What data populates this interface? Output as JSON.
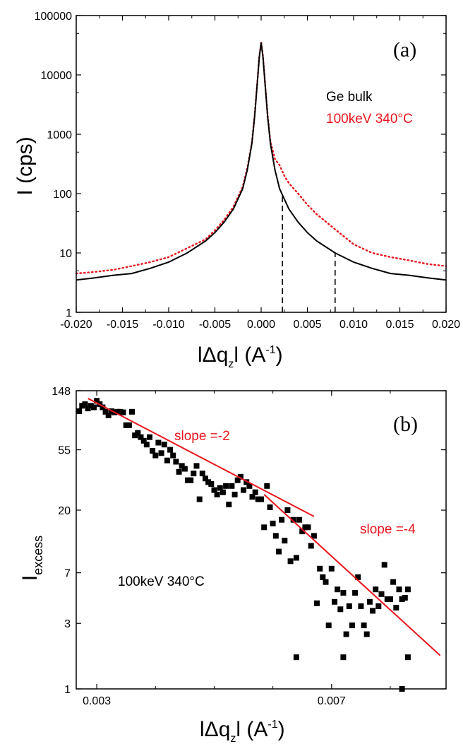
{
  "chart_data": [
    {
      "panel_label": "(a)",
      "type": "line",
      "xlabel": "lΔq_zl (A^-1)",
      "xlabel_main": "lΔq",
      "xlabel_sub": "z",
      "xlabel_tail": "l (A",
      "xlabel_sup": "-1",
      "xlabel_close": ")",
      "ylabel": "I (cps)",
      "yscale": "log",
      "xlim": [
        -0.02,
        0.02
      ],
      "ylim": [
        1,
        100000
      ],
      "x_ticks": [
        -0.02,
        -0.015,
        -0.01,
        -0.005,
        0.0,
        0.005,
        0.01,
        0.015,
        0.02
      ],
      "x_tick_labels": [
        "-0.020",
        "-0.015",
        "-0.010",
        "-0.005",
        "0.000",
        "0.005",
        "0.010",
        "0.015",
        "0.020"
      ],
      "y_ticks": [
        1,
        10,
        100,
        1000,
        10000,
        100000
      ],
      "y_tick_labels": [
        "1",
        "10",
        "100",
        "1000",
        "10000",
        "100000"
      ],
      "series": [
        {
          "name": "Ge bulk",
          "color": "#000000",
          "style": "solid",
          "x": [
            -0.02,
            -0.018,
            -0.016,
            -0.014,
            -0.012,
            -0.01,
            -0.008,
            -0.006,
            -0.005,
            -0.004,
            -0.003,
            -0.002,
            -0.0015,
            -0.001,
            -0.0007,
            -0.0004,
            -0.0002,
            0.0,
            0.0002,
            0.0004,
            0.0007,
            0.001,
            0.0015,
            0.002,
            0.003,
            0.004,
            0.005,
            0.006,
            0.008,
            0.01,
            0.012,
            0.014,
            0.016,
            0.018,
            0.02
          ],
          "y": [
            3.5,
            3.8,
            4.2,
            4.5,
            5.5,
            7,
            10,
            16,
            22,
            33,
            55,
            120,
            250,
            700,
            2000,
            8000,
            20000,
            35000,
            20000,
            8000,
            2000,
            700,
            250,
            120,
            55,
            33,
            22,
            16,
            10,
            7,
            5.5,
            4.5,
            4.2,
            3.8,
            3.5
          ]
        },
        {
          "name": "100keV 340°C",
          "color": "#e8141c",
          "style": "dotted",
          "x": [
            -0.02,
            -0.018,
            -0.016,
            -0.014,
            -0.012,
            -0.01,
            -0.008,
            -0.006,
            -0.005,
            -0.004,
            -0.003,
            -0.002,
            -0.0015,
            -0.001,
            -0.0007,
            -0.0004,
            -0.0002,
            0.0,
            0.0002,
            0.0004,
            0.0007,
            0.001,
            0.0015,
            0.002,
            0.0025,
            0.003,
            0.004,
            0.005,
            0.006,
            0.008,
            0.01,
            0.012,
            0.014,
            0.016,
            0.018,
            0.02
          ],
          "y": [
            4.5,
            4.8,
            5.2,
            6,
            7,
            8.5,
            12,
            17,
            24,
            36,
            60,
            130,
            270,
            720,
            2100,
            8200,
            20500,
            35000,
            20500,
            8200,
            2100,
            760,
            380,
            300,
            200,
            150,
            100,
            65,
            45,
            25,
            14,
            10,
            8.5,
            7.5,
            6.5,
            6
          ]
        }
      ],
      "annotations": {
        "legend": [
          "Ge bulk",
          "100keV 340°C"
        ],
        "vertical_dashed_lines_x": [
          0.0023,
          0.008
        ]
      }
    },
    {
      "panel_label": "(b)",
      "type": "scatter",
      "xlabel": "lΔq_zl (A^-1)",
      "xlabel_main": "lΔq",
      "xlabel_sub": "z",
      "xlabel_tail": "l (A",
      "xlabel_sup": "-1",
      "xlabel_close": ")",
      "ylabel": "I_excess",
      "ylabel_main": "I",
      "ylabel_sub": "excess",
      "xscale": "linear",
      "yscale": "log",
      "xlim": [
        0.00265,
        0.00895
      ],
      "ylim": [
        1,
        148
      ],
      "x_ticks": [
        0.003,
        0.007
      ],
      "x_tick_labels": [
        "0.003",
        "0.007"
      ],
      "y_ticks": [
        1,
        3,
        7,
        20,
        55,
        148
      ],
      "y_tick_labels": [
        "1",
        "3",
        "7",
        "20",
        "55",
        "148"
      ],
      "series": [
        {
          "name": "100keV 340°C",
          "color": "#000000",
          "marker": "square",
          "points": [
            [
              0.0027,
              105
            ],
            [
              0.00275,
              115
            ],
            [
              0.0028,
              118
            ],
            [
              0.00285,
              110
            ],
            [
              0.0029,
              115
            ],
            [
              0.00295,
              112
            ],
            [
              0.003,
              125
            ],
            [
              0.00305,
              118
            ],
            [
              0.0031,
              112
            ],
            [
              0.00315,
              104
            ],
            [
              0.0032,
              98
            ],
            [
              0.00325,
              105
            ],
            [
              0.0033,
              103
            ],
            [
              0.00335,
              104
            ],
            [
              0.0034,
              104
            ],
            [
              0.00345,
              103
            ],
            [
              0.0035,
              83
            ],
            [
              0.00355,
              83
            ],
            [
              0.0036,
              104
            ],
            [
              0.00365,
              70
            ],
            [
              0.0037,
              73
            ],
            [
              0.00375,
              68
            ],
            [
              0.0038,
              64
            ],
            [
              0.00385,
              60
            ],
            [
              0.0039,
              68
            ],
            [
              0.00395,
              54
            ],
            [
              0.004,
              50
            ],
            [
              0.00405,
              62
            ],
            [
              0.0041,
              52
            ],
            [
              0.00415,
              60
            ],
            [
              0.0042,
              46
            ],
            [
              0.00425,
              55
            ],
            [
              0.0043,
              50
            ],
            [
              0.00435,
              45
            ],
            [
              0.0044,
              38
            ],
            [
              0.00445,
              42
            ],
            [
              0.0045,
              40
            ],
            [
              0.00455,
              33
            ],
            [
              0.0046,
              33
            ],
            [
              0.00465,
              37
            ],
            [
              0.0047,
              42
            ],
            [
              0.00475,
              24
            ],
            [
              0.0048,
              37
            ],
            [
              0.00485,
              34
            ],
            [
              0.0049,
              32
            ],
            [
              0.00495,
              31
            ],
            [
              0.005,
              28
            ],
            [
              0.00505,
              26
            ],
            [
              0.0051,
              29
            ],
            [
              0.00515,
              27
            ],
            [
              0.0052,
              30
            ],
            [
              0.00525,
              22
            ],
            [
              0.0053,
              30
            ],
            [
              0.00535,
              26
            ],
            [
              0.0054,
              33
            ],
            [
              0.00545,
              35
            ],
            [
              0.0055,
              28
            ],
            [
              0.00555,
              32
            ],
            [
              0.0056,
              30
            ],
            [
              0.00565,
              25
            ],
            [
              0.0057,
              27
            ],
            [
              0.00575,
              24
            ],
            [
              0.0058,
              24
            ],
            [
              0.00585,
              15
            ],
            [
              0.0059,
              30
            ],
            [
              0.00595,
              21
            ],
            [
              0.006,
              16
            ],
            [
              0.00605,
              13
            ],
            [
              0.0061,
              10
            ],
            [
              0.00615,
              17
            ],
            [
              0.0062,
              12
            ],
            [
              0.00625,
              20
            ],
            [
              0.0063,
              8.5
            ],
            [
              0.00635,
              17
            ],
            [
              0.0064,
              9
            ],
            [
              0.00645,
              17
            ],
            [
              0.0065,
              14
            ],
            [
              0.00655,
              15
            ],
            [
              0.0066,
              15
            ],
            [
              0.00665,
              11
            ],
            [
              0.0067,
              13
            ],
            [
              0.00675,
              4.2
            ],
            [
              0.0068,
              7.5
            ],
            [
              0.00685,
              6.5
            ],
            [
              0.0069,
              6.0
            ],
            [
              0.00695,
              2.9
            ],
            [
              0.007,
              7.5
            ],
            [
              0.00705,
              4.3
            ],
            [
              0.0071,
              5.3
            ],
            [
              0.00715,
              3.8
            ],
            [
              0.0072,
              5.0
            ],
            [
              0.00725,
              2.5
            ],
            [
              0.0073,
              4.0
            ],
            [
              0.00735,
              2.9
            ],
            [
              0.0074,
              5.0
            ],
            [
              0.00745,
              6.5
            ],
            [
              0.0075,
              4.0
            ],
            [
              0.00755,
              2.9
            ],
            [
              0.0076,
              2.5
            ],
            [
              0.00765,
              4.3
            ],
            [
              0.0077,
              3.7
            ],
            [
              0.00775,
              5.3
            ],
            [
              0.0078,
              4.0
            ],
            [
              0.00785,
              4.9
            ],
            [
              0.0079,
              8.0
            ],
            [
              0.00795,
              4.5
            ],
            [
              0.008,
              4.5
            ],
            [
              0.00805,
              6.0
            ],
            [
              0.0081,
              3.9
            ],
            [
              0.00815,
              5.3
            ],
            [
              0.0082,
              4.5
            ],
            [
              0.00825,
              4.6
            ],
            [
              0.0083,
              5.3
            ],
            [
              0.0064,
              1.7
            ],
            [
              0.0072,
              1.7
            ],
            [
              0.0083,
              1.7
            ],
            [
              0.0082,
              1.0
            ]
          ]
        }
      ],
      "fit_lines": [
        {
          "label": "slope =-2",
          "color": "#e8141c",
          "x": [
            0.00285,
            0.0067
          ],
          "y": [
            130,
            18
          ]
        },
        {
          "label": "slope =-4",
          "color": "#e8141c",
          "x": [
            0.00585,
            0.00885
          ],
          "y": [
            26,
            1.75
          ]
        }
      ],
      "annotations": {
        "sample_label": "100keV 340°C"
      }
    }
  ]
}
